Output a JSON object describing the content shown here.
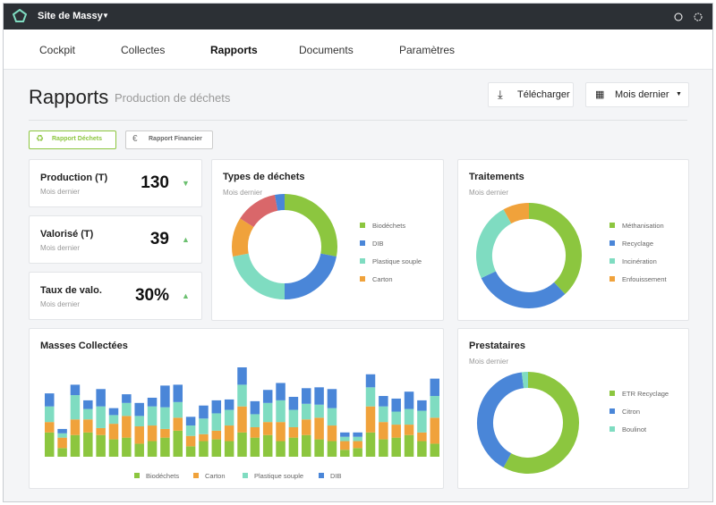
{
  "header": {
    "site": "Site de Massy"
  },
  "nav": {
    "items": [
      "Cockpit",
      "Collectes",
      "Rapports",
      "Documents",
      "Paramètres"
    ],
    "active": 2
  },
  "page": {
    "title": "Rapports",
    "subtitle": "Production de déchets",
    "download": "Télécharger",
    "period": "Mois dernier"
  },
  "tabs": {
    "items": [
      "Rapport Déchets",
      "Rapport Financier"
    ],
    "active": 0
  },
  "kpis": [
    {
      "label": "Production (T)",
      "period": "Mois dernier",
      "value": 130,
      "trend": "down"
    },
    {
      "label": "Valorisé (T)",
      "period": "Mois dernier",
      "value": 39,
      "trend": "up"
    },
    {
      "label": "Taux de valo.",
      "period": "Mois dernier",
      "value": "30%",
      "trend": "up"
    }
  ],
  "charts": [
    {
      "type": "donut",
      "title": "Types de déchets",
      "subtitle": "Mois dernier",
      "categories": [
        "Biodéchets",
        "DIB",
        "Plastique souple",
        "Carton",
        null,
        null
      ],
      "values": [
        28,
        22,
        22,
        12,
        13,
        3
      ],
      "colors": [
        "#8cc63f",
        "#4a86d8",
        "#7fdcc1",
        "#f0a23b",
        "#d9676a",
        "#4a86d8"
      ]
    },
    {
      "type": "donut",
      "title": "Traitements",
      "subtitle": "Mois dernier",
      "categories": [
        "Méthanisation",
        "Recyclage",
        "Incinération",
        "Enfouissement"
      ],
      "values": [
        38,
        30,
        24,
        8
      ],
      "colors": [
        "#8cc63f",
        "#4a86d8",
        "#7fdcc1",
        "#f0a23b"
      ]
    },
    {
      "type": "donut",
      "title": "Prestataires",
      "subtitle": "Mois dernier",
      "categories": [
        "ETR Recyclage",
        "Citron",
        "Boulinot"
      ],
      "values": [
        58,
        40,
        2
      ],
      "colors": [
        "#8cc63f",
        "#4a86d8",
        "#7fdcc1"
      ]
    },
    {
      "type": "bar",
      "stacked": true,
      "title": "Masses Collectées",
      "categories": [
        null,
        null,
        null,
        null,
        null,
        null,
        null,
        null,
        null,
        null,
        null,
        null,
        null,
        null,
        null,
        null,
        null,
        null,
        null,
        null,
        null,
        null,
        null,
        null,
        null,
        null,
        null,
        null,
        null,
        null,
        null
      ],
      "series": [
        {
          "name": "Biodéchets",
          "color": "#8cc63f",
          "values": [
            28,
            10,
            25,
            28,
            25,
            20,
            22,
            15,
            18,
            22,
            30,
            12,
            18,
            20,
            18,
            28,
            22,
            25,
            18,
            22,
            25,
            20,
            18,
            8,
            10,
            28,
            20,
            22,
            25,
            18,
            15
          ]
        },
        {
          "name": "Carton",
          "color": "#f0a23b",
          "values": [
            12,
            12,
            18,
            15,
            8,
            18,
            25,
            20,
            18,
            10,
            15,
            12,
            8,
            10,
            18,
            30,
            12,
            15,
            22,
            12,
            18,
            25,
            18,
            10,
            8,
            30,
            20,
            15,
            12,
            10,
            30
          ]
        },
        {
          "name": "Plastique souple",
          "color": "#7fdcc1",
          "values": [
            18,
            5,
            28,
            12,
            25,
            10,
            15,
            12,
            22,
            25,
            18,
            12,
            18,
            20,
            18,
            25,
            15,
            22,
            25,
            20,
            18,
            15,
            20,
            5,
            5,
            22,
            18,
            15,
            18,
            25,
            25
          ]
        },
        {
          "name": "DIB",
          "color": "#4a86d8",
          "values": [
            15,
            5,
            12,
            10,
            20,
            8,
            10,
            15,
            10,
            25,
            20,
            10,
            15,
            15,
            12,
            20,
            15,
            15,
            20,
            15,
            18,
            20,
            22,
            5,
            5,
            15,
            12,
            15,
            20,
            12,
            20
          ]
        }
      ]
    }
  ]
}
